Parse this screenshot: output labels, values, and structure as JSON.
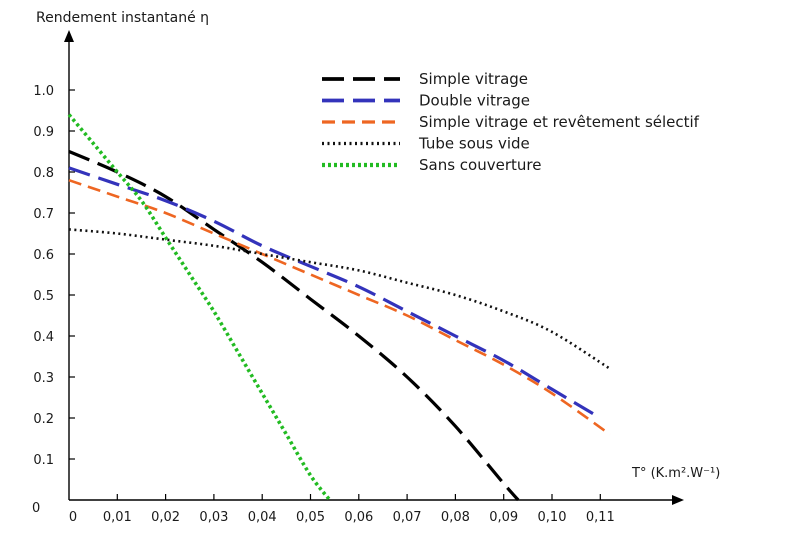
{
  "chart_data": {
    "type": "line",
    "title": "",
    "ylabel": "Rendement instantané η",
    "xlabel": "T° (K.m².W⁻¹)",
    "xlim": [
      0,
      0.12
    ],
    "ylim": [
      0,
      1.05
    ],
    "x_ticks": [
      "0",
      "0,01",
      "0,02",
      "0,03",
      "0,04",
      "0,05",
      "0,06",
      "0,07",
      "0,08",
      "0,09",
      "0,10",
      "0,11"
    ],
    "y_ticks": [
      "0",
      "0.1",
      "0.2",
      "0.3",
      "0.4",
      "0.5",
      "0.6",
      "0.7",
      "0.8",
      "0.9",
      "1.0"
    ],
    "legend_position": "top-center",
    "grid": false,
    "series": [
      {
        "name": "Simple vitrage",
        "color": "#000000",
        "dash": "long-dash",
        "points": [
          [
            0,
            0.85
          ],
          [
            0.01,
            0.8
          ],
          [
            0.02,
            0.74
          ],
          [
            0.03,
            0.66
          ],
          [
            0.04,
            0.58
          ],
          [
            0.05,
            0.49
          ],
          [
            0.06,
            0.4
          ],
          [
            0.07,
            0.3
          ],
          [
            0.08,
            0.18
          ],
          [
            0.09,
            0.04
          ],
          [
            0.093,
            0.0
          ]
        ]
      },
      {
        "name": "Double vitrage",
        "color": "#3333bb",
        "dash": "long-dash",
        "points": [
          [
            0,
            0.81
          ],
          [
            0.01,
            0.77
          ],
          [
            0.02,
            0.73
          ],
          [
            0.03,
            0.68
          ],
          [
            0.04,
            0.62
          ],
          [
            0.05,
            0.57
          ],
          [
            0.06,
            0.52
          ],
          [
            0.07,
            0.46
          ],
          [
            0.08,
            0.4
          ],
          [
            0.09,
            0.34
          ],
          [
            0.1,
            0.27
          ],
          [
            0.11,
            0.2
          ]
        ]
      },
      {
        "name": "Simple vitrage et revêtement sélectif",
        "color": "#ee6622",
        "dash": "medium-dash",
        "points": [
          [
            0,
            0.78
          ],
          [
            0.01,
            0.74
          ],
          [
            0.02,
            0.7
          ],
          [
            0.03,
            0.65
          ],
          [
            0.04,
            0.6
          ],
          [
            0.05,
            0.55
          ],
          [
            0.06,
            0.5
          ],
          [
            0.07,
            0.45
          ],
          [
            0.08,
            0.39
          ],
          [
            0.09,
            0.33
          ],
          [
            0.1,
            0.26
          ],
          [
            0.112,
            0.16
          ]
        ]
      },
      {
        "name": "Tube sous vide",
        "color": "#111111",
        "dash": "dotted",
        "points": [
          [
            0,
            0.66
          ],
          [
            0.01,
            0.65
          ],
          [
            0.02,
            0.635
          ],
          [
            0.03,
            0.62
          ],
          [
            0.04,
            0.6
          ],
          [
            0.05,
            0.58
          ],
          [
            0.06,
            0.56
          ],
          [
            0.07,
            0.53
          ],
          [
            0.08,
            0.5
          ],
          [
            0.09,
            0.46
          ],
          [
            0.1,
            0.41
          ],
          [
            0.112,
            0.32
          ]
        ]
      },
      {
        "name": "Sans couverture",
        "color": "#22bb22",
        "dash": "dotted-thick",
        "points": [
          [
            0,
            0.94
          ],
          [
            0.005,
            0.87
          ],
          [
            0.01,
            0.8
          ],
          [
            0.015,
            0.73
          ],
          [
            0.02,
            0.64
          ],
          [
            0.025,
            0.55
          ],
          [
            0.03,
            0.46
          ],
          [
            0.035,
            0.36
          ],
          [
            0.04,
            0.26
          ],
          [
            0.045,
            0.16
          ],
          [
            0.05,
            0.06
          ],
          [
            0.054,
            0.0
          ]
        ]
      }
    ]
  }
}
